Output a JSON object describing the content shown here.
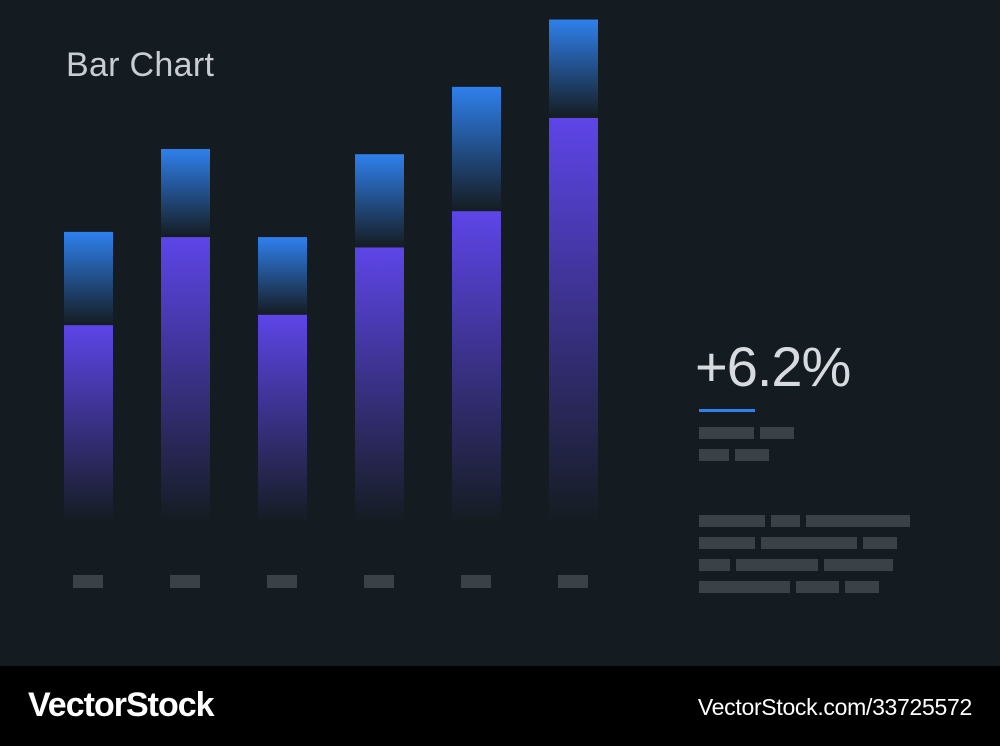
{
  "chart_data": {
    "type": "bar",
    "title": "Bar Chart",
    "categories": [
      "",
      "",
      "",
      "",
      "",
      ""
    ],
    "series": [
      {
        "values": [
          38,
          55,
          40,
          53,
          60,
          78
        ]
      },
      {
        "values": [
          18,
          17,
          15,
          18,
          24,
          19
        ]
      }
    ],
    "ylim": [
      0,
      100
    ],
    "grid": false,
    "legend": "none",
    "annotations": [
      "+6.2%"
    ]
  },
  "colors": {
    "background": "#151c21",
    "primary": "#5d45e8",
    "secondary": "#2f80ed",
    "placeholder": "#3a4247",
    "footer": "#000000"
  },
  "stat": {
    "value": "+6.2%"
  },
  "footer": {
    "brand": "VectorStock",
    "ref": "VectorStock.com/33725572"
  }
}
